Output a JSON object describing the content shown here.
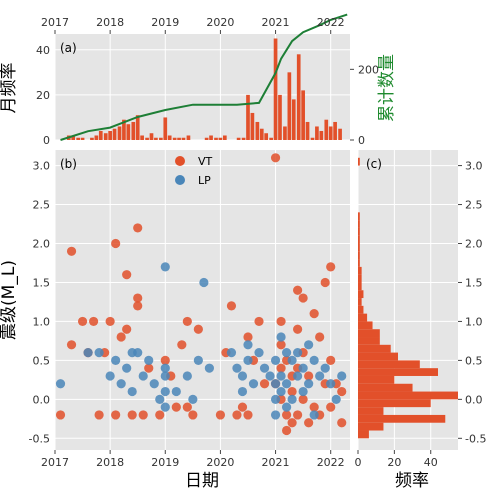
{
  "colors": {
    "panel_bg": "#e5e5e5",
    "grid": "#ffffff",
    "vt": "#e2502a",
    "lp": "#4a86b9",
    "cum_line": "#1e7f36",
    "cum_label": "#1e8a2e",
    "bar": "#e2502a"
  },
  "chart_data": [
    {
      "panel": "a",
      "panel_label": "(a)",
      "type": "bar",
      "ylabel": "月频率",
      "y2label": "累计数量",
      "xlim": [
        2017.0,
        2022.35
      ],
      "ylim": [
        0,
        47
      ],
      "y2lim": [
        0,
        300
      ],
      "xticks": [
        2017,
        2018,
        2019,
        2020,
        2021,
        2022
      ],
      "yticks": [
        0,
        20,
        40
      ],
      "y2ticks": [
        0,
        200
      ],
      "months": [
        2017.25,
        2017.33,
        2017.42,
        2017.5,
        2017.58,
        2017.67,
        2017.75,
        2017.83,
        2017.92,
        2018.0,
        2018.08,
        2018.17,
        2018.25,
        2018.33,
        2018.42,
        2018.5,
        2018.58,
        2018.67,
        2018.75,
        2018.83,
        2018.92,
        2019.0,
        2019.08,
        2019.17,
        2019.25,
        2019.33,
        2019.42,
        2019.5,
        2019.58,
        2019.67,
        2019.75,
        2019.83,
        2019.92,
        2020.0,
        2020.08,
        2020.17,
        2020.25,
        2020.33,
        2020.42,
        2020.5,
        2020.58,
        2020.67,
        2020.75,
        2020.83,
        2020.92,
        2021.0,
        2021.08,
        2021.17,
        2021.25,
        2021.33,
        2021.42,
        2021.5,
        2021.58,
        2021.67,
        2021.75,
        2021.83,
        2021.92,
        2022.0,
        2022.08,
        2022.17
      ],
      "monthly_counts": [
        2,
        2,
        1,
        1,
        0,
        1,
        2,
        4,
        3,
        4,
        5,
        6,
        9,
        7,
        8,
        11,
        2,
        1,
        3,
        1,
        1,
        10,
        2,
        1,
        1,
        1,
        2,
        0,
        0,
        0,
        1,
        2,
        1,
        1,
        2,
        0,
        0,
        1,
        1,
        20,
        12,
        8,
        5,
        3,
        1,
        45,
        20,
        6,
        30,
        18,
        38,
        22,
        8,
        1,
        6,
        4,
        9,
        6,
        8,
        5
      ],
      "cumulative_curve": {
        "x": [
          2017.1,
          2017.3,
          2017.6,
          2018.0,
          2018.5,
          2019.0,
          2019.5,
          2019.9,
          2020.3,
          2020.7,
          2021.0,
          2021.1,
          2021.3,
          2021.5,
          2021.8,
          2022.0,
          2022.3
        ],
        "y": [
          0,
          10,
          25,
          35,
          65,
          85,
          100,
          100,
          100,
          105,
          190,
          230,
          280,
          305,
          325,
          340,
          355
        ]
      }
    },
    {
      "panel": "b",
      "panel_label": "(b)",
      "type": "scatter",
      "xlabel": "日期",
      "ylabel": "震级(M_L)",
      "xlim": [
        2017.0,
        2022.35
      ],
      "ylim": [
        -0.65,
        3.2
      ],
      "xticks": [
        2017,
        2018,
        2019,
        2020,
        2021,
        2022
      ],
      "yticks": [
        -0.5,
        0.0,
        0.5,
        1.0,
        1.5,
        2.0,
        2.5,
        3.0
      ],
      "ytick_labels": [
        "-0.5",
        "0.0",
        "0.5",
        "1.0",
        "1.5",
        "2.0",
        "2.5",
        "3.0"
      ],
      "legend": {
        "position": "top-center",
        "entries": [
          "VT",
          "LP"
        ]
      },
      "series": [
        {
          "name": "VT",
          "points": [
            [
              2017.1,
              -0.2
            ],
            [
              2017.3,
              1.9
            ],
            [
              2017.3,
              0.7
            ],
            [
              2017.5,
              1.0
            ],
            [
              2017.6,
              0.6
            ],
            [
              2017.7,
              1.0
            ],
            [
              2017.8,
              -0.2
            ],
            [
              2017.9,
              0.6
            ],
            [
              2018.0,
              1.0
            ],
            [
              2018.1,
              2.0
            ],
            [
              2018.1,
              -0.2
            ],
            [
              2018.2,
              0.8
            ],
            [
              2018.3,
              1.6
            ],
            [
              2018.3,
              0.9
            ],
            [
              2018.4,
              -0.2
            ],
            [
              2018.5,
              2.2
            ],
            [
              2018.5,
              1.3
            ],
            [
              2018.5,
              1.2
            ],
            [
              2018.6,
              -0.2
            ],
            [
              2018.7,
              0.4
            ],
            [
              2018.9,
              -0.2
            ],
            [
              2019.0,
              0.5
            ],
            [
              2019.1,
              0.3
            ],
            [
              2019.2,
              -0.1
            ],
            [
              2019.3,
              0.7
            ],
            [
              2019.4,
              1.0
            ],
            [
              2019.4,
              -0.1
            ],
            [
              2019.5,
              -0.2
            ],
            [
              2019.6,
              0.9
            ],
            [
              2020.0,
              -0.2
            ],
            [
              2020.1,
              0.6
            ],
            [
              2020.2,
              1.2
            ],
            [
              2020.3,
              -0.2
            ],
            [
              2020.4,
              -0.1
            ],
            [
              2020.5,
              0.8
            ],
            [
              2020.5,
              -0.2
            ],
            [
              2020.6,
              0.5
            ],
            [
              2020.7,
              1.0
            ],
            [
              2020.8,
              0.2
            ],
            [
              2021.0,
              3.1
            ],
            [
              2021.0,
              0.2
            ],
            [
              2021.1,
              1.0
            ],
            [
              2021.1,
              0.7
            ],
            [
              2021.1,
              0.4
            ],
            [
              2021.1,
              0.0
            ],
            [
              2021.2,
              -0.2
            ],
            [
              2021.2,
              -0.4
            ],
            [
              2021.2,
              0.5
            ],
            [
              2021.3,
              0.3
            ],
            [
              2021.3,
              -0.3
            ],
            [
              2021.3,
              0.1
            ],
            [
              2021.4,
              1.4
            ],
            [
              2021.4,
              0.9
            ],
            [
              2021.4,
              0.4
            ],
            [
              2021.4,
              -0.2
            ],
            [
              2021.5,
              1.3
            ],
            [
              2021.5,
              0.6
            ],
            [
              2021.5,
              0.0
            ],
            [
              2021.6,
              -0.3
            ],
            [
              2021.6,
              0.3
            ],
            [
              2021.7,
              1.1
            ],
            [
              2021.7,
              -0.1
            ],
            [
              2021.8,
              0.8
            ],
            [
              2021.8,
              -0.2
            ],
            [
              2021.9,
              1.5
            ],
            [
              2021.9,
              0.2
            ],
            [
              2022.0,
              1.7
            ],
            [
              2022.0,
              0.5
            ],
            [
              2022.0,
              -0.1
            ],
            [
              2022.1,
              0.2
            ],
            [
              2022.2,
              0.1
            ],
            [
              2022.2,
              -0.3
            ]
          ]
        },
        {
          "name": "LP",
          "points": [
            [
              2017.1,
              0.2
            ],
            [
              2017.6,
              0.6
            ],
            [
              2017.8,
              0.6
            ],
            [
              2018.0,
              0.3
            ],
            [
              2018.1,
              0.5
            ],
            [
              2018.2,
              0.2
            ],
            [
              2018.3,
              0.4
            ],
            [
              2018.4,
              0.6
            ],
            [
              2018.4,
              0.1
            ],
            [
              2018.5,
              0.6
            ],
            [
              2018.6,
              0.3
            ],
            [
              2018.7,
              0.5
            ],
            [
              2018.8,
              0.2
            ],
            [
              2018.9,
              0.0
            ],
            [
              2019.0,
              1.7
            ],
            [
              2019.0,
              0.4
            ],
            [
              2019.0,
              0.3
            ],
            [
              2019.0,
              0.1
            ],
            [
              2019.0,
              -0.1
            ],
            [
              2019.2,
              0.1
            ],
            [
              2019.4,
              0.3
            ],
            [
              2019.5,
              0.0
            ],
            [
              2019.6,
              0.5
            ],
            [
              2019.7,
              1.5
            ],
            [
              2019.8,
              0.4
            ],
            [
              2020.2,
              0.6
            ],
            [
              2020.3,
              0.4
            ],
            [
              2020.4,
              0.3
            ],
            [
              2020.4,
              0.1
            ],
            [
              2020.5,
              0.7
            ],
            [
              2020.5,
              0.5
            ],
            [
              2020.6,
              0.2
            ],
            [
              2020.7,
              0.6
            ],
            [
              2020.8,
              0.4
            ],
            [
              2020.9,
              0.3
            ],
            [
              2021.0,
              0.5
            ],
            [
              2021.0,
              0.2
            ],
            [
              2021.0,
              0.0
            ],
            [
              2021.0,
              -0.2
            ],
            [
              2021.1,
              0.8
            ],
            [
              2021.1,
              0.3
            ],
            [
              2021.1,
              0.1
            ],
            [
              2021.2,
              0.6
            ],
            [
              2021.2,
              0.2
            ],
            [
              2021.2,
              -0.1
            ],
            [
              2021.3,
              0.5
            ],
            [
              2021.3,
              0.0
            ],
            [
              2021.4,
              0.6
            ],
            [
              2021.4,
              0.3
            ],
            [
              2021.5,
              0.4
            ],
            [
              2021.5,
              0.1
            ],
            [
              2021.6,
              0.7
            ],
            [
              2021.6,
              0.2
            ],
            [
              2021.7,
              0.5
            ],
            [
              2021.7,
              -0.2
            ],
            [
              2021.8,
              0.3
            ],
            [
              2021.9,
              0.4
            ],
            [
              2022.0,
              0.2
            ],
            [
              2022.1,
              0.0
            ],
            [
              2022.2,
              0.3
            ]
          ]
        }
      ]
    },
    {
      "panel": "c",
      "panel_label": "(c)",
      "type": "bar",
      "orientation": "horizontal",
      "xlabel": "频率",
      "xlim": [
        0,
        55
      ],
      "ylim": [
        -0.65,
        3.2
      ],
      "xticks": [
        0,
        20,
        40
      ],
      "yticks": [
        -0.5,
        0.0,
        0.5,
        1.0,
        1.5,
        2.0,
        2.5,
        3.0
      ],
      "ytick_labels": [
        "-0.5",
        "0.0",
        "0.5",
        "1.0",
        "1.5",
        "2.0",
        "2.5",
        "3.0"
      ],
      "bin_centers": [
        -0.45,
        -0.35,
        -0.25,
        -0.15,
        -0.05,
        0.05,
        0.15,
        0.25,
        0.35,
        0.45,
        0.55,
        0.65,
        0.75,
        0.85,
        0.95,
        1.05,
        1.15,
        1.25,
        1.35,
        1.45,
        1.55,
        1.65,
        1.75,
        1.85,
        1.95,
        2.05,
        2.15,
        2.25,
        2.35,
        3.05
      ],
      "counts": [
        6,
        14,
        48,
        14,
        40,
        55,
        30,
        20,
        44,
        34,
        22,
        18,
        12,
        12,
        8,
        5,
        3,
        2,
        3,
        2,
        2,
        2,
        1,
        1,
        1,
        1,
        1,
        1,
        1,
        1
      ]
    }
  ]
}
